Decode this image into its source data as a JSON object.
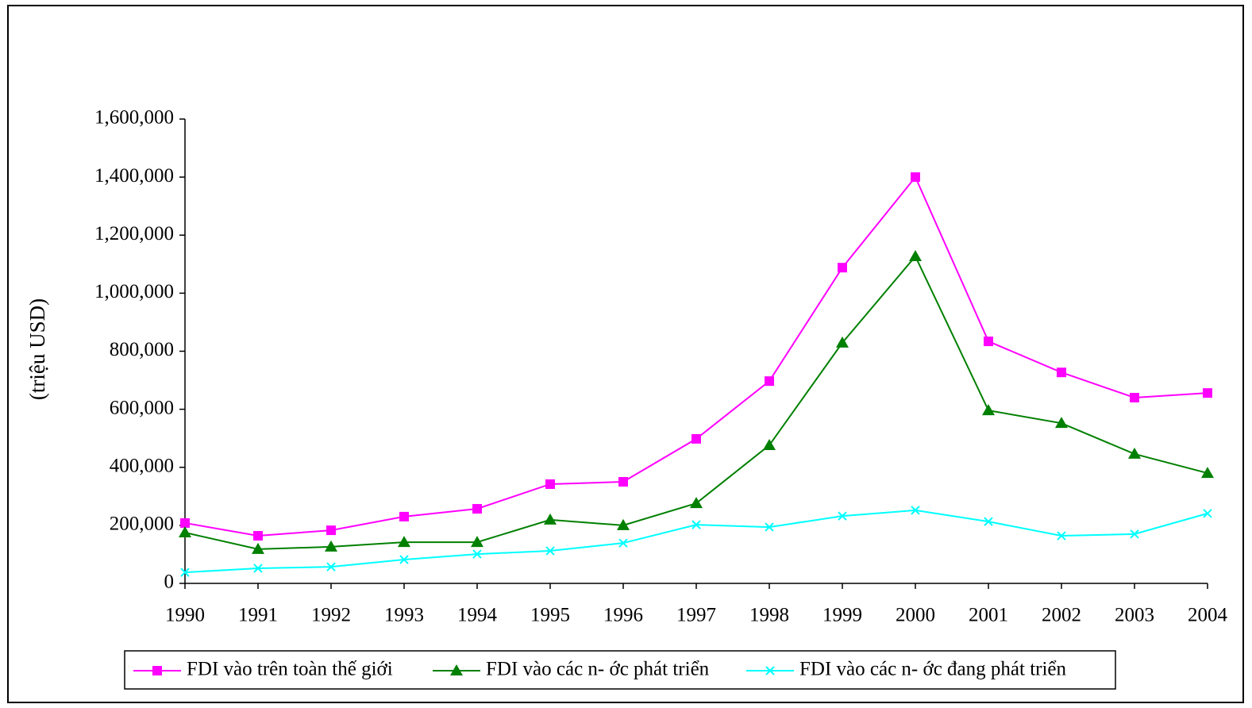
{
  "chart_data": {
    "type": "line",
    "y_label": "(triệu USD)",
    "categories": [
      "1990",
      "1991",
      "1992",
      "1993",
      "1994",
      "1995",
      "1996",
      "1997",
      "1998",
      "1999",
      "2000",
      "2001",
      "2002",
      "2003",
      "2004"
    ],
    "series": [
      {
        "name": "FDI vào trên toàn thế giới",
        "color": "#ff00ff",
        "marker": "square",
        "values": [
          208000,
          164000,
          183000,
          230000,
          257000,
          342000,
          350000,
          498000,
          697000,
          1088000,
          1400000,
          834000,
          727000,
          640000,
          656000
        ]
      },
      {
        "name": "FDI vào các n- ớc phát triển",
        "color": "#008000",
        "marker": "triangle",
        "values": [
          175000,
          118000,
          126000,
          142000,
          142000,
          219000,
          200000,
          276000,
          476000,
          829000,
          1127000,
          596000,
          552000,
          446000,
          380000
        ]
      },
      {
        "name": "FDI vào các n- ớc đang phát triển",
        "color": "#00ffff",
        "marker": "x",
        "values": [
          38000,
          52000,
          57000,
          82000,
          101000,
          112000,
          139000,
          202000,
          194000,
          232000,
          252000,
          213000,
          164000,
          170000,
          241000
        ]
      }
    ],
    "ylim": [
      0,
      1600000
    ],
    "yticks": [
      0,
      {
        "value": 200000,
        "label": "200,000"
      },
      {
        "value": 400000,
        "label": "400,000"
      },
      {
        "value": 600000,
        "label": "600,000"
      },
      {
        "value": 800000,
        "label": "800,000"
      },
      {
        "value": 1000000,
        "label": "1,000,000"
      },
      {
        "value": 1200000,
        "label": "1,200,000"
      },
      {
        "value": 1400000,
        "label": "1,400,000"
      },
      {
        "value": 1600000,
        "label": "1,600,000"
      }
    ],
    "grid": false,
    "legend": "bottom"
  }
}
